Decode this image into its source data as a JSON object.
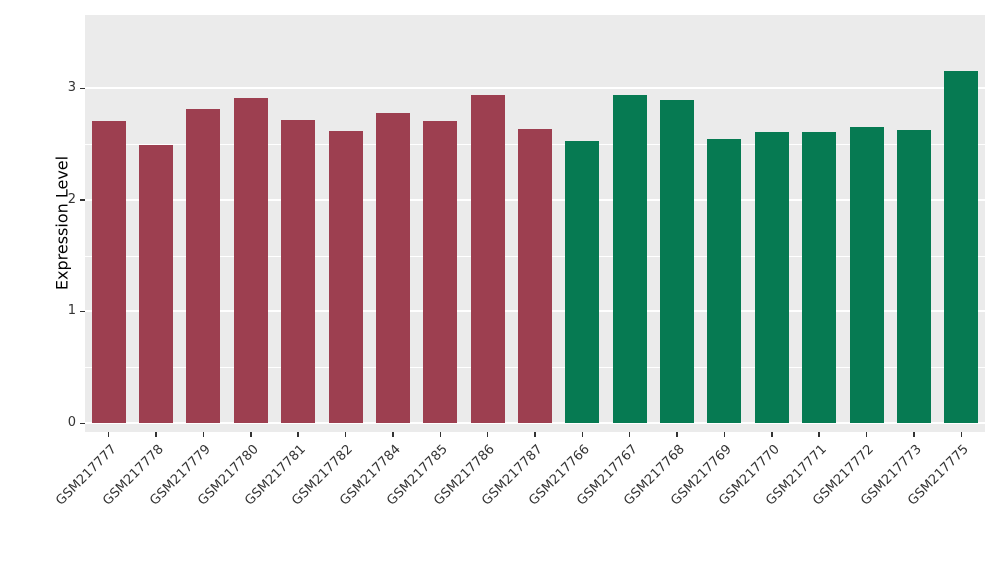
{
  "chart_data": {
    "type": "bar",
    "title": "",
    "xlabel": "",
    "ylabel": "Expression Level",
    "categories": [
      "GSM217777",
      "GSM217778",
      "GSM217779",
      "GSM217780",
      "GSM217781",
      "GSM217782",
      "GSM217784",
      "GSM217785",
      "GSM217786",
      "GSM217787",
      "GSM217766",
      "GSM217767",
      "GSM217768",
      "GSM217769",
      "GSM217770",
      "GSM217771",
      "GSM217772",
      "GSM217773",
      "GSM217775"
    ],
    "values": [
      2.71,
      2.49,
      2.82,
      2.91,
      2.72,
      2.62,
      2.78,
      2.71,
      2.94,
      2.64,
      2.53,
      2.94,
      2.9,
      2.55,
      2.61,
      2.61,
      2.65,
      2.63,
      3.16
    ],
    "group_index": [
      0,
      0,
      0,
      0,
      0,
      0,
      0,
      0,
      0,
      0,
      1,
      1,
      1,
      1,
      1,
      1,
      1,
      1,
      1
    ],
    "group_colors": [
      "#9D3F50",
      "#067A52"
    ],
    "yticks": [
      0,
      1,
      2,
      3
    ],
    "minor_ticks": [
      0.5,
      1.5,
      2.5
    ],
    "ylim": [
      0,
      3.3
    ],
    "panel_background": "#EBEBEB",
    "grid_color": "#FFFFFF",
    "axis_text_color": "#333333",
    "legend": "none",
    "grid": "on"
  }
}
